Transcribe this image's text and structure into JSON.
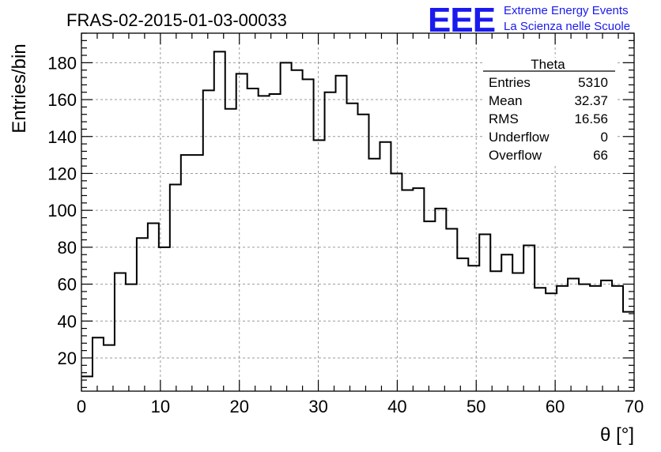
{
  "header": {
    "run_title": "FRAS-02-2015-01-03-00033",
    "logo_text": "EEE",
    "logo_line1": "Extreme Energy Events",
    "logo_line2": "La Scienza nelle Scuole"
  },
  "colors": {
    "logo": "#1a1aee",
    "line": "#000000",
    "grid": "#9a9a9a"
  },
  "stats": {
    "title": "Theta",
    "rows": [
      {
        "label": "Entries",
        "value": "5310"
      },
      {
        "label": "Mean",
        "value": "32.37"
      },
      {
        "label": "RMS",
        "value": "16.56"
      },
      {
        "label": "Underflow",
        "value": "0"
      },
      {
        "label": "Overflow",
        "value": "66"
      }
    ]
  },
  "chart_data": {
    "type": "histogram",
    "xlabel": "θ [°]",
    "ylabel": "Entries/bin",
    "xlim": [
      0,
      70
    ],
    "ylim": [
      2,
      196
    ],
    "x_ticks": [
      0,
      10,
      20,
      30,
      40,
      50,
      60,
      70
    ],
    "y_ticks": [
      20,
      40,
      60,
      80,
      100,
      120,
      140,
      160,
      180
    ],
    "grid": true,
    "bin_width": 1.4,
    "bin_edges_start": 0,
    "values": [
      10,
      31,
      27,
      66,
      60,
      85,
      93,
      80,
      114,
      130,
      130,
      165,
      186,
      155,
      174,
      166,
      162,
      163,
      180,
      176,
      171,
      138,
      164,
      173,
      158,
      152,
      128,
      137,
      120,
      111,
      112,
      94,
      101,
      90,
      74,
      70,
      87,
      67,
      76,
      66,
      81,
      58,
      55,
      59,
      63,
      60,
      59,
      62,
      59,
      45
    ]
  }
}
